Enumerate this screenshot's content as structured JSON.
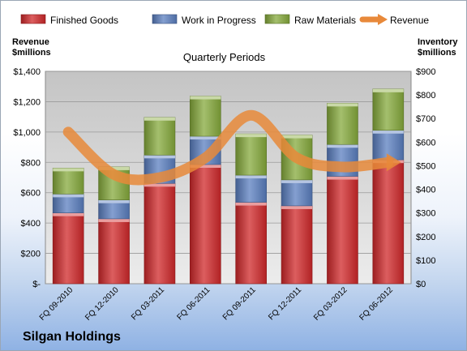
{
  "chart_data": {
    "type": "bar",
    "stacked": true,
    "title": "Quarterly Periods",
    "company": "Silgan Holdings",
    "left_axis_label": [
      "Revenue",
      "$millions"
    ],
    "right_axis_label": [
      "Inventory",
      "$millions"
    ],
    "categories": [
      "FQ 09-2010",
      "FQ 12-2010",
      "FQ 03-2011",
      "FQ 06-2011",
      "FQ 09-2011",
      "FQ 12-2011",
      "FQ 03-2012",
      "FQ 06-2012"
    ],
    "left_ticks": [
      "$-",
      "$200",
      "$400",
      "$600",
      "$800",
      "$1,000",
      "$1,200",
      "$1,400"
    ],
    "right_ticks": [
      "$0",
      "$100",
      "$200",
      "$300",
      "$400",
      "$500",
      "$600",
      "$700",
      "$800",
      "$900"
    ],
    "ylim_left": [
      0,
      1400
    ],
    "ylim_right": [
      0,
      900
    ],
    "series": [
      {
        "name": "Finished Goods",
        "type": "bar",
        "axis": "right",
        "color": "#d0282a",
        "values": [
          300,
          275,
          425,
          505,
          345,
          330,
          455,
          525
        ]
      },
      {
        "name": "Work in Progress",
        "type": "bar",
        "axis": "right",
        "color": "#5b7fc0",
        "values": [
          80,
          80,
          120,
          120,
          115,
          110,
          135,
          125
        ]
      },
      {
        "name": "Raw Materials",
        "type": "bar",
        "axis": "right",
        "color": "#86aa3c",
        "values": [
          110,
          140,
          160,
          170,
          175,
          190,
          175,
          175
        ]
      },
      {
        "name": "Revenue",
        "type": "line",
        "axis": "left",
        "color": "#e8893a",
        "values": [
          1000,
          720,
          700,
          830,
          1110,
          830,
          770,
          800
        ]
      }
    ],
    "legend_position": "top",
    "grid": true
  }
}
